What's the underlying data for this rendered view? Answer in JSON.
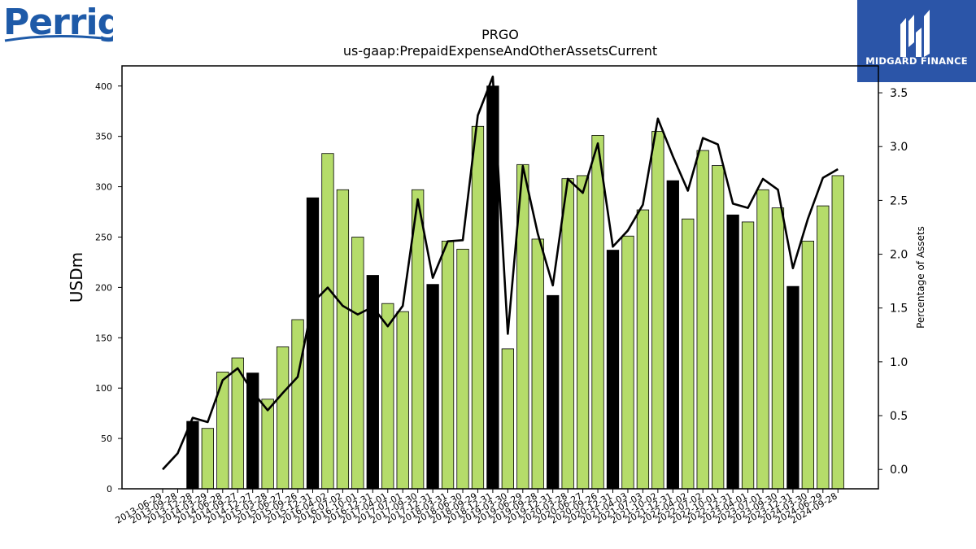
{
  "brand_left": {
    "name": "Perrigo",
    "color": "#1e5aa8"
  },
  "brand_right": {
    "name": "MIDGARD FINANCE",
    "color": "#2b55a8"
  },
  "colors": {
    "bar_default": "#b5dc6a",
    "bar_highlight": "#000000",
    "line": "#000000"
  },
  "chart_data": {
    "type": "bar",
    "title": "PRGO",
    "subtitle": "us-gaap:PrepaidExpenseAndOtherAssetsCurrent",
    "ylabel": "USDm",
    "y2label": "Percentage of Assets",
    "ylim": [
      0,
      420
    ],
    "y2lim": [
      -0.18,
      3.75
    ],
    "yticks": [
      0,
      50,
      100,
      150,
      200,
      250,
      300,
      350,
      400
    ],
    "y2ticks": [
      0.0,
      0.5,
      1.0,
      1.5,
      2.0,
      2.5,
      3.0,
      3.5
    ],
    "y2tick_labels": [
      "0.0",
      "0.5",
      "1.0",
      "1.5",
      "2.0",
      "2.5",
      "3.0",
      "3.5"
    ],
    "categories": [
      "2013-06-29",
      "2013-09-28",
      "2013-12-28",
      "2014-03-29",
      "2014-06-28",
      "2014-09-27",
      "2014-12-27",
      "2015-03-28",
      "2015-06-27",
      "2015-09-26",
      "2015-12-31",
      "2016-04-02",
      "2016-07-02",
      "2016-10-01",
      "2016-12-31",
      "2017-04-01",
      "2017-07-01",
      "2017-09-30",
      "2017-12-31",
      "2018-03-31",
      "2018-06-30",
      "2018-09-29",
      "2018-12-31",
      "2019-03-30",
      "2019-06-29",
      "2019-09-28",
      "2019-12-31",
      "2020-03-28",
      "2020-06-27",
      "2020-09-26",
      "2020-12-31",
      "2021-04-03",
      "2021-07-03",
      "2021-10-02",
      "2021-12-31",
      "2022-04-02",
      "2022-07-02",
      "2022-10-01",
      "2022-12-31",
      "2023-04-01",
      "2023-07-01",
      "2023-09-30",
      "2023-12-31",
      "2024-03-30",
      "2024-06-29",
      "2024-09-28"
    ],
    "series": [
      {
        "type": "bar",
        "values": [
          null,
          null,
          67,
          60,
          116,
          130,
          115,
          89,
          141,
          168,
          289,
          333,
          297,
          250,
          212,
          184,
          176,
          297,
          203,
          246,
          238,
          360,
          400,
          139,
          322,
          248,
          192,
          308,
          311,
          351,
          237,
          251,
          277,
          355,
          306,
          268,
          336,
          321,
          272,
          265,
          297,
          279,
          201,
          246,
          281,
          311
        ],
        "highlight": [
          false,
          false,
          true,
          false,
          false,
          false,
          true,
          false,
          false,
          false,
          true,
          false,
          false,
          false,
          true,
          false,
          false,
          false,
          true,
          false,
          false,
          false,
          true,
          false,
          false,
          false,
          true,
          false,
          false,
          false,
          true,
          false,
          false,
          false,
          true,
          false,
          false,
          false,
          true,
          false,
          false,
          false,
          true,
          false,
          false,
          false
        ]
      },
      {
        "type": "line",
        "axis": "y2",
        "values": [
          0.0,
          0.15,
          0.48,
          0.44,
          0.83,
          0.94,
          0.72,
          0.55,
          0.71,
          0.86,
          1.55,
          1.69,
          1.52,
          1.44,
          1.51,
          1.33,
          1.52,
          2.51,
          1.78,
          2.12,
          2.13,
          3.29,
          3.65,
          1.26,
          2.82,
          2.19,
          1.71,
          2.7,
          2.57,
          3.03,
          2.07,
          2.22,
          2.46,
          3.26,
          2.91,
          2.59,
          3.08,
          3.02,
          2.47,
          2.43,
          2.7,
          2.6,
          1.87,
          2.33,
          2.71,
          2.79
        ]
      }
    ],
    "grid": false,
    "legend": "none"
  }
}
